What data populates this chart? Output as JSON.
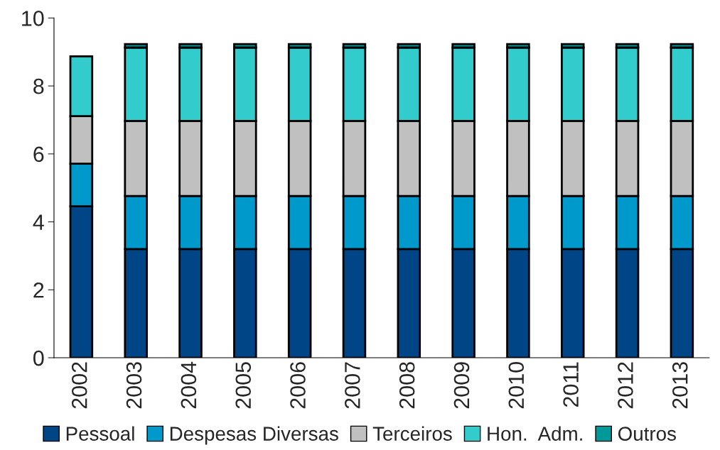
{
  "chart_data": {
    "type": "bar",
    "stacked": true,
    "categories": [
      "2002",
      "2003",
      "2004",
      "2005",
      "2006",
      "2007",
      "2008",
      "2009",
      "2010",
      "2011",
      "2012",
      "2013"
    ],
    "series": [
      {
        "name": "Pessoal",
        "color": "#004586",
        "values": [
          4.46,
          3.2,
          3.2,
          3.2,
          3.2,
          3.2,
          3.2,
          3.2,
          3.2,
          3.2,
          3.2,
          3.2
        ]
      },
      {
        "name": "Despesas Diversas",
        "color": "#0099cc",
        "values": [
          1.25,
          1.56,
          1.56,
          1.56,
          1.56,
          1.56,
          1.56,
          1.56,
          1.56,
          1.56,
          1.56,
          1.56
        ]
      },
      {
        "name": "Terceiros",
        "color": "#c0c0c0",
        "values": [
          1.4,
          2.21,
          2.21,
          2.21,
          2.21,
          2.21,
          2.21,
          2.21,
          2.21,
          2.21,
          2.21,
          2.21
        ]
      },
      {
        "name": "Hon.  Adm.",
        "color": "#33cccc",
        "values": [
          1.76,
          2.16,
          2.16,
          2.16,
          2.16,
          2.16,
          2.16,
          2.16,
          2.16,
          2.16,
          2.16,
          2.16
        ]
      },
      {
        "name": "Outros",
        "color": "#009999",
        "values": [
          null,
          0.1,
          0.1,
          0.1,
          0.1,
          0.1,
          0.1,
          0.1,
          0.1,
          0.1,
          0.1,
          0.1
        ]
      }
    ],
    "ylim": [
      0,
      10
    ],
    "yticks": [
      0,
      2,
      4,
      6,
      8,
      10
    ],
    "grid": false,
    "legend": "bottom"
  }
}
